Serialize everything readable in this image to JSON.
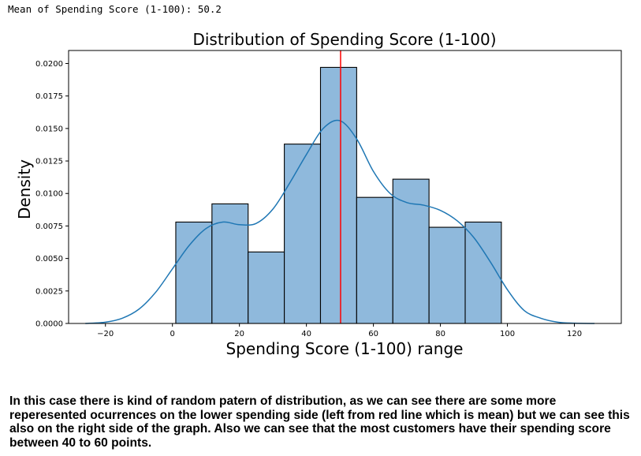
{
  "header": {
    "mean_line": "Mean of Spending Score (1-100): 50.2"
  },
  "chart_data": {
    "type": "bar",
    "title": "Distribution of Spending Score (1-100)",
    "xlabel": "Spending Score (1-100) range",
    "ylabel": "Density",
    "xlim": [
      -31,
      134
    ],
    "ylim": [
      0,
      0.021
    ],
    "x_ticks": [
      -20,
      0,
      20,
      40,
      60,
      80,
      100,
      120
    ],
    "y_ticks": [
      0.0,
      0.0025,
      0.005,
      0.0075,
      0.01,
      0.0125,
      0.015,
      0.0175,
      0.02
    ],
    "y_tick_labels": [
      "0.0000",
      "0.0025",
      "0.0050",
      "0.0075",
      "0.0100",
      "0.0125",
      "0.0150",
      "0.0175",
      "0.0200"
    ],
    "x_tick_labels": [
      "−20",
      "0",
      "20",
      "40",
      "60",
      "80",
      "100",
      "120"
    ],
    "bins": [
      {
        "x0": 1.0,
        "x1": 11.8,
        "density": 0.0078
      },
      {
        "x0": 11.8,
        "x1": 22.6,
        "density": 0.0092
      },
      {
        "x0": 22.6,
        "x1": 33.4,
        "density": 0.0055
      },
      {
        "x0": 33.4,
        "x1": 44.2,
        "density": 0.0138
      },
      {
        "x0": 44.2,
        "x1": 55.0,
        "density": 0.0197
      },
      {
        "x0": 55.0,
        "x1": 65.8,
        "density": 0.0097
      },
      {
        "x0": 65.8,
        "x1": 76.6,
        "density": 0.0111
      },
      {
        "x0": 76.6,
        "x1": 87.4,
        "density": 0.0074
      },
      {
        "x0": 87.4,
        "x1": 98.2,
        "density": 0.0078
      }
    ],
    "kde": {
      "x": [
        -26,
        -20,
        -15,
        -10,
        -5,
        0,
        5,
        10,
        15,
        20,
        25,
        30,
        35,
        40,
        45,
        50,
        55,
        60,
        65,
        70,
        75,
        80,
        85,
        90,
        95,
        100,
        105,
        110,
        115,
        120,
        126
      ],
      "y": [
        0.0,
        0.0001,
        0.0004,
        0.0011,
        0.0024,
        0.0042,
        0.006,
        0.0073,
        0.0078,
        0.0076,
        0.0077,
        0.0088,
        0.0108,
        0.013,
        0.015,
        0.0156,
        0.0142,
        0.0117,
        0.01,
        0.0093,
        0.0091,
        0.0087,
        0.0079,
        0.0066,
        0.0047,
        0.0026,
        0.001,
        0.0004,
        0.0001,
        2e-05,
        0.0
      ]
    },
    "mean": 50.2,
    "colors": {
      "bar_fill": "#8fb9dc",
      "bar_edge": "#000000",
      "kde_line": "#1f77b4",
      "mean_line": "#ff0000"
    }
  },
  "note": {
    "text": "In this case there is kind of random patern of distribution, as we can see there are some more reperesented ocurrences on the lower spending side (left from red line which is mean) but we can see this also on the right side of the graph. Also we can see that the most customers have their spending score between 40 to 60 points."
  }
}
